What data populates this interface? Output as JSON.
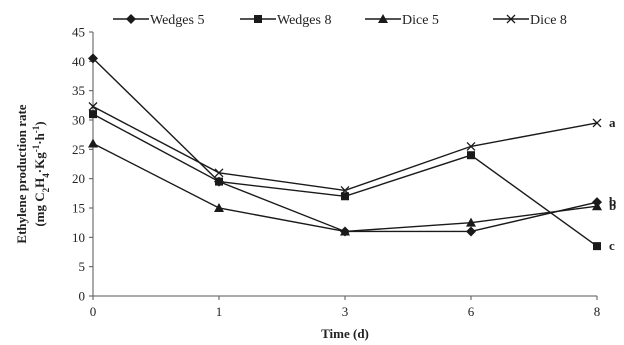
{
  "chart_data": {
    "type": "line",
    "x": [
      "0",
      "1",
      "3",
      "6",
      "8"
    ],
    "xlabel": "Time (d)",
    "ylabel_line1": "Ethylene production rate",
    "ylabel_line2": "(mg C2H4·Kg-1·h-1)",
    "ylim": [
      0,
      45
    ],
    "yticks": [
      0,
      5,
      10,
      15,
      20,
      25,
      30,
      35,
      40,
      45
    ],
    "grid": false,
    "legend_position": "top",
    "series": [
      {
        "name": "Wedges 5",
        "marker": "diamond",
        "values": [
          40.5,
          19.5,
          11,
          11,
          16
        ],
        "end_label": "b"
      },
      {
        "name": "Wedges 8",
        "marker": "square",
        "values": [
          31,
          19.5,
          17,
          24,
          8.5
        ],
        "end_label": "c"
      },
      {
        "name": "Dice 5",
        "marker": "triangle",
        "values": [
          26,
          15,
          11,
          12.5,
          15.3
        ],
        "end_label": "b"
      },
      {
        "name": "Dice 8",
        "marker": "x",
        "values": [
          32.3,
          21,
          18,
          25.5,
          29.5
        ],
        "end_label": "a"
      }
    ]
  }
}
